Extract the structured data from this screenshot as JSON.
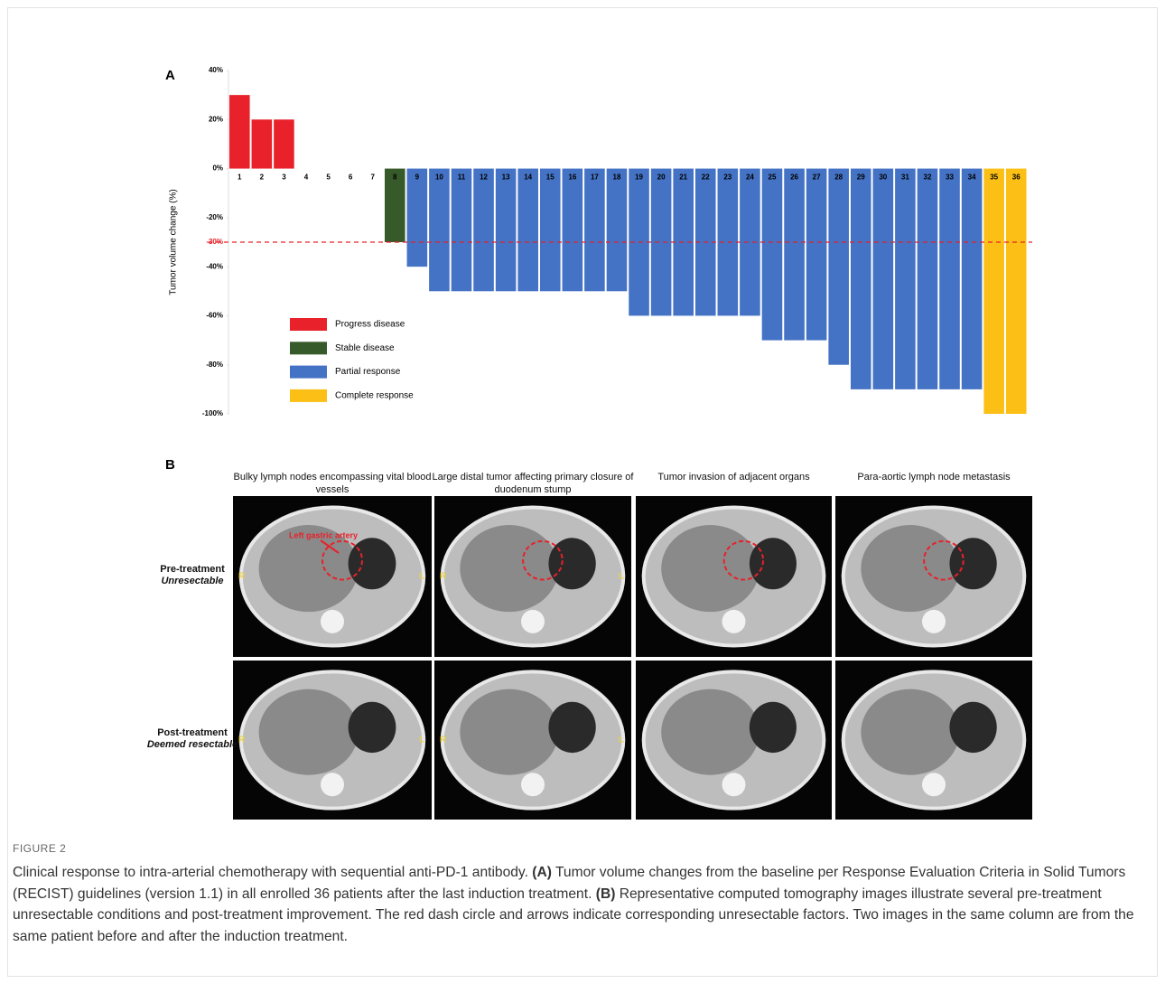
{
  "chart_data": {
    "type": "bar",
    "panel_label": "A",
    "ylabel": "Tumor volume change (%)",
    "categories": [
      "1",
      "2",
      "3",
      "4",
      "5",
      "6",
      "7",
      "8",
      "9",
      "10",
      "11",
      "12",
      "13",
      "14",
      "15",
      "16",
      "17",
      "18",
      "19",
      "20",
      "21",
      "22",
      "23",
      "24",
      "25",
      "26",
      "27",
      "28",
      "29",
      "30",
      "31",
      "32",
      "33",
      "34",
      "35",
      "36"
    ],
    "series": [
      {
        "name": "Progress disease",
        "color": "#e8212a",
        "values": [
          30,
          20,
          20,
          null,
          null,
          null,
          null,
          null,
          null,
          null,
          null,
          null,
          null,
          null,
          null,
          null,
          null,
          null,
          null,
          null,
          null,
          null,
          null,
          null,
          null,
          null,
          null,
          null,
          null,
          null,
          null,
          null,
          null,
          null,
          null,
          null
        ]
      },
      {
        "name": "Stable disease",
        "color": "#375a2a",
        "values": [
          null,
          null,
          null,
          0,
          0,
          0,
          0,
          -30,
          null,
          null,
          null,
          null,
          null,
          null,
          null,
          null,
          null,
          null,
          null,
          null,
          null,
          null,
          null,
          null,
          null,
          null,
          null,
          null,
          null,
          null,
          null,
          null,
          null,
          null,
          null,
          null
        ]
      },
      {
        "name": "Partial response",
        "color": "#4472c4",
        "values": [
          null,
          null,
          null,
          null,
          null,
          null,
          null,
          null,
          -40,
          -50,
          -50,
          -50,
          -50,
          -50,
          -50,
          -50,
          -50,
          -50,
          -60,
          -60,
          -60,
          -60,
          -60,
          -60,
          -70,
          -70,
          -70,
          -80,
          -90,
          -90,
          -90,
          -90,
          -90,
          -90,
          null,
          null
        ]
      },
      {
        "name": "Complete response",
        "color": "#fbbf16",
        "values": [
          null,
          null,
          null,
          null,
          null,
          null,
          null,
          null,
          null,
          null,
          null,
          null,
          null,
          null,
          null,
          null,
          null,
          null,
          null,
          null,
          null,
          null,
          null,
          null,
          null,
          null,
          null,
          null,
          null,
          null,
          null,
          null,
          null,
          null,
          -100,
          -100
        ]
      }
    ],
    "ylim": [
      -100,
      40
    ],
    "yticks": [
      {
        "value": 40,
        "label": "40%"
      },
      {
        "value": 20,
        "label": "20%"
      },
      {
        "value": 0,
        "label": "0%"
      },
      {
        "value": -20,
        "label": "-20%"
      },
      {
        "value": -40,
        "label": "-40%"
      },
      {
        "value": -60,
        "label": "-60%"
      },
      {
        "value": -80,
        "label": "-80%"
      },
      {
        "value": -100,
        "label": "-100%"
      }
    ],
    "threshold": {
      "value": -30,
      "label": "-30%",
      "color": "#e8212a"
    }
  },
  "panel_b": {
    "label": "B",
    "columns": [
      "Bulky lymph nodes encompassing vital blood vessels",
      "Large distal tumor affecting primary closure of duodenum stump",
      "Tumor invasion of adjacent organs",
      "Para-aortic lymph node metastasis"
    ],
    "rows": [
      {
        "title": "Pre-treatment",
        "subtitle": "Unresectable"
      },
      {
        "title": "Post-treatment",
        "subtitle": "Deemed resectable"
      }
    ],
    "annotation": "Left gastric artery",
    "side_left": "R",
    "side_right": "L"
  },
  "caption": {
    "figure": "FIGURE 2",
    "intro": "Clinical response to intra-arterial chemotherapy with sequential anti-PD-1 antibody.",
    "a_label": "(A)",
    "a_text": "Tumor volume changes from the baseline per Response Evaluation Criteria in Solid Tumors (RECIST) guidelines (version 1.1) in all enrolled 36 patients after the last induction treatment.",
    "b_label": "(B)",
    "b_text": "Representative computed tomography images illustrate several pre-treatment unresectable conditions and post-treatment improvement. The red dash circle and arrows indicate corresponding unresectable factors. Two images in the same column are from the same patient before and after the induction treatment."
  }
}
